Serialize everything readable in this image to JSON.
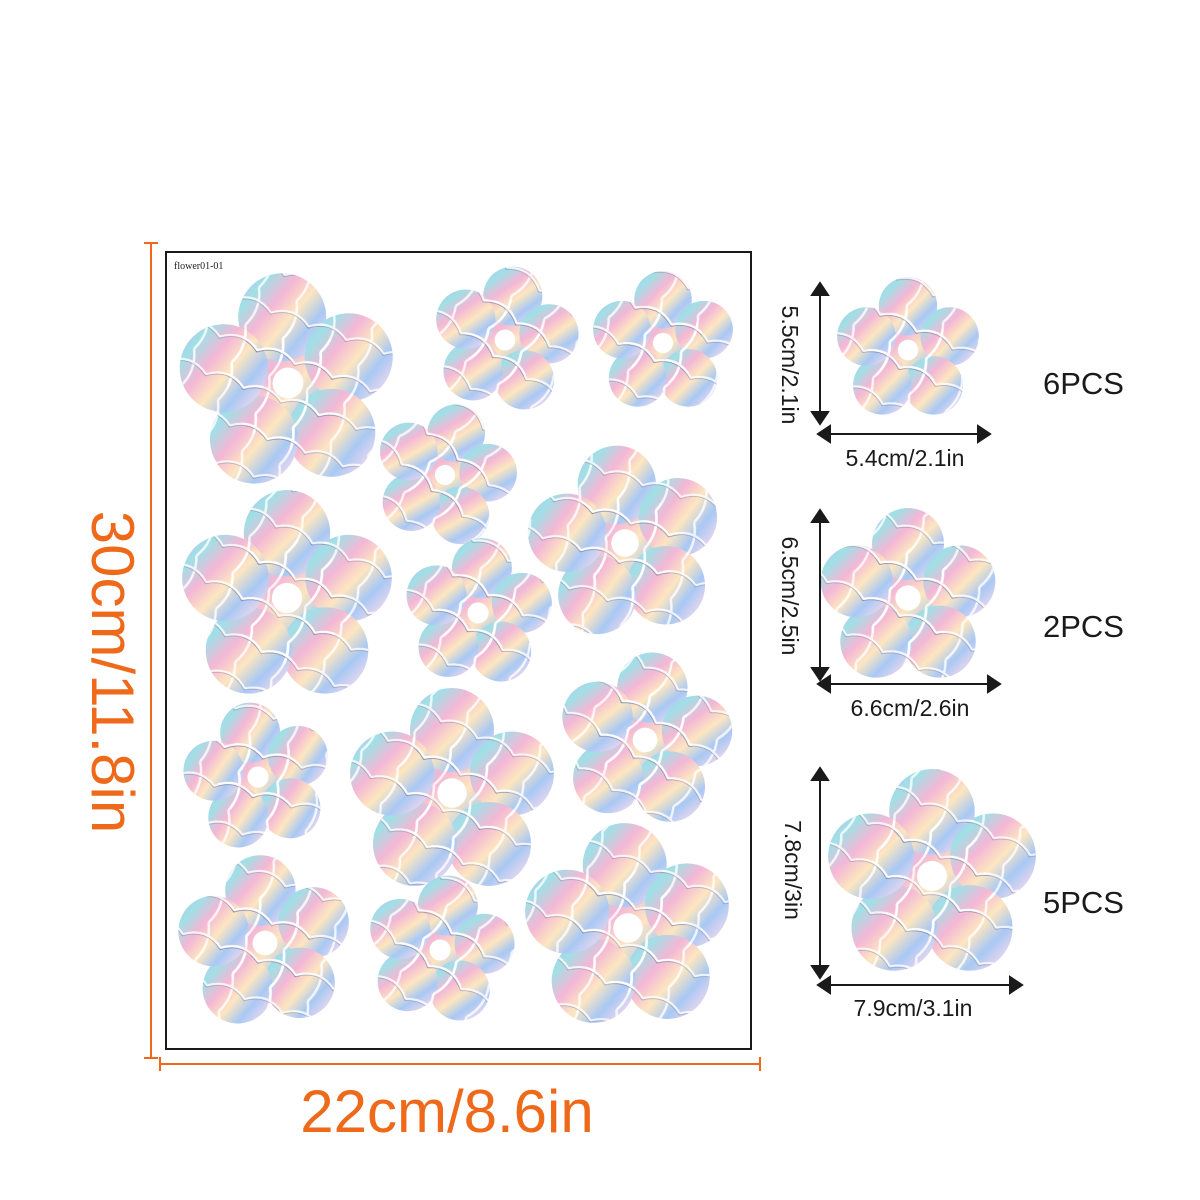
{
  "sheet": {
    "label": "flower01-01",
    "height_label": "30cm/11.8in",
    "width_label": "22cm/8.6in"
  },
  "sizes": [
    {
      "height": "5.5cm/2.1in",
      "width": "5.4cm/2.1in",
      "count": "6PCS"
    },
    {
      "height": "6.5cm/2.5in",
      "width": "6.6cm/2.6in",
      "count": "2PCS"
    },
    {
      "height": "7.8cm/3in",
      "width": "7.9cm/3.1in",
      "count": "5PCS"
    }
  ],
  "colors": {
    "dimension": "#ee6a1a",
    "text": "#1a1a1a",
    "border": "#1a1a1a"
  },
  "item": "iridescent holographic flower sticker"
}
